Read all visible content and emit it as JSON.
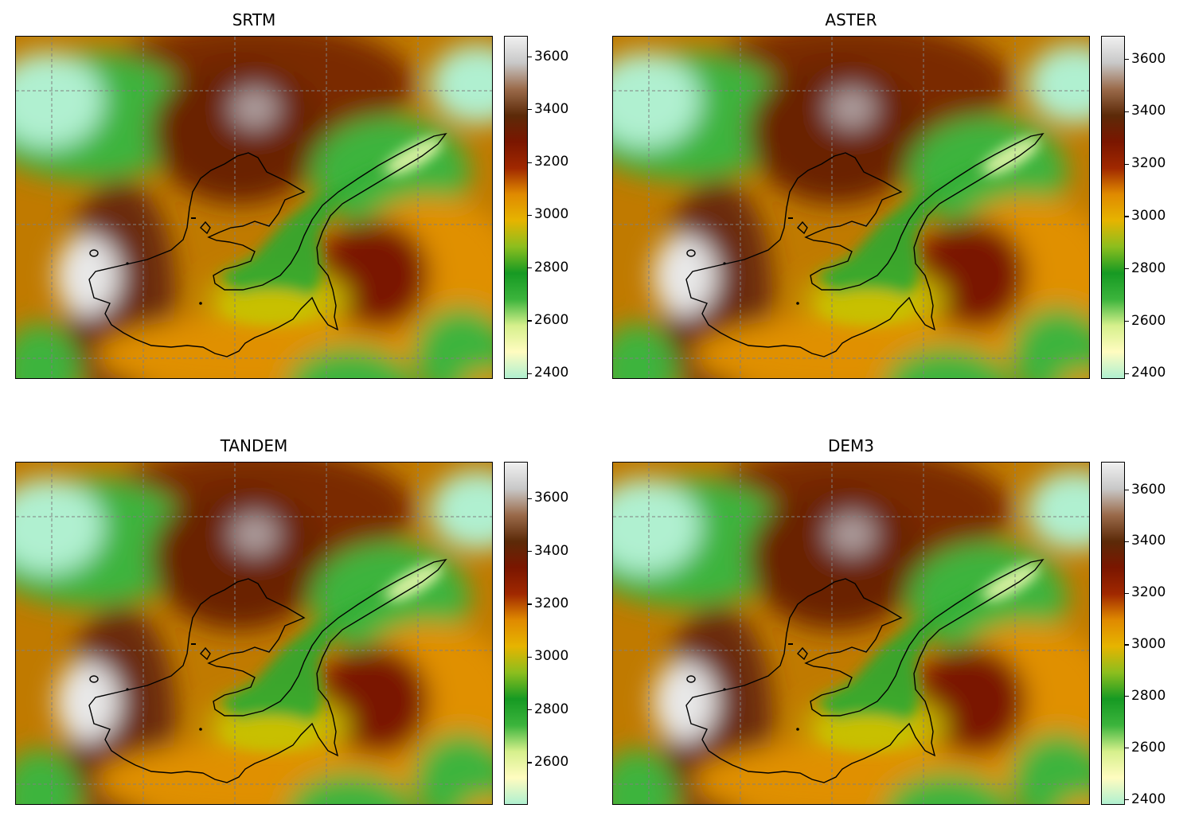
{
  "colormap": {
    "name": "terrain-like",
    "stops": [
      "#b0f0d0",
      "#fffcc0",
      "#d6f08c",
      "#3cb43c",
      "#169a23",
      "#8cbe1e",
      "#e6b400",
      "#e08a00",
      "#a02800",
      "#7a1600",
      "#5c2a08",
      "#9a6a4a",
      "#c8c8c8",
      "#f0f0f0"
    ]
  },
  "panels": [
    {
      "id": "srtm",
      "title": "SRTM",
      "colorbar": {
        "min": 2380,
        "max": 3680,
        "ticks": [
          "2400",
          "2600",
          "2800",
          "3000",
          "3200",
          "3400",
          "3600"
        ]
      }
    },
    {
      "id": "aster",
      "title": "ASTER",
      "colorbar": {
        "min": 2380,
        "max": 3690,
        "ticks": [
          "2400",
          "2600",
          "2800",
          "3000",
          "3200",
          "3400",
          "3600"
        ]
      }
    },
    {
      "id": "tandem",
      "title": "TANDEM",
      "colorbar": {
        "min": 2440,
        "max": 3740,
        "ticks": [
          "2600",
          "2800",
          "3000",
          "3200",
          "3400",
          "3600"
        ]
      }
    },
    {
      "id": "dem3",
      "title": "DEM3",
      "colorbar": {
        "min": 2380,
        "max": 3710,
        "ticks": [
          "2400",
          "2600",
          "2800",
          "3000",
          "3200",
          "3400",
          "3600"
        ]
      }
    }
  ],
  "gridlines": {
    "style": "dashed",
    "color": "#808080"
  },
  "glacier_outline": {
    "color": "#000000"
  }
}
